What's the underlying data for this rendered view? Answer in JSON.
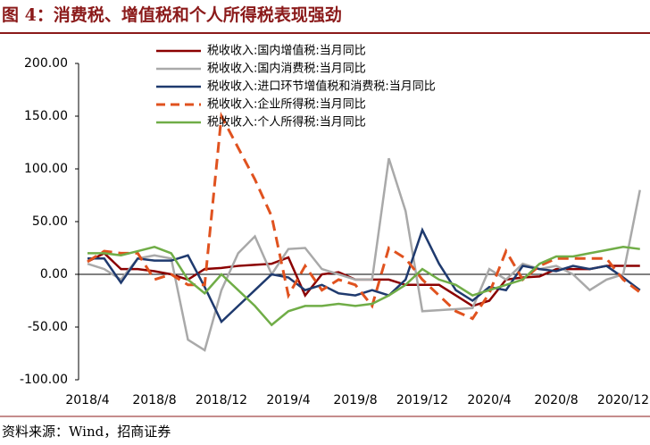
{
  "chart_data": {
    "type": "line",
    "title": "图 4：消费税、增值税和个人所得税表现强劲",
    "source": "资料来源：Wind，招商证券",
    "categories": [
      "2018/4",
      null,
      null,
      null,
      "2018/8",
      null,
      null,
      null,
      "2018/12",
      null,
      null,
      null,
      "2019/4",
      null,
      null,
      null,
      "2019/8",
      null,
      null,
      null,
      "2019/12",
      null,
      null,
      null,
      "2020/4",
      null,
      null,
      null,
      "2020/8",
      null,
      null,
      null,
      "2020/12",
      null
    ],
    "ylim": [
      -100,
      200
    ],
    "yticks": [
      {
        "value": -100,
        "label": "-100.00"
      },
      {
        "value": -50,
        "label": "-50.00"
      },
      {
        "value": 0,
        "label": "0.00"
      },
      {
        "value": 50,
        "label": "50.00"
      },
      {
        "value": 100,
        "label": "100.00"
      },
      {
        "value": 150,
        "label": "150.00"
      },
      {
        "value": 200,
        "label": "200.00"
      }
    ],
    "series": [
      {
        "name": "税收收入:国内增值税:当月同比",
        "color": "#8b0000",
        "dash": false,
        "values": [
          12,
          20,
          5,
          5,
          3,
          0,
          -5,
          5,
          6,
          8,
          9,
          10,
          16,
          -20,
          0,
          2,
          -5,
          -5,
          -5,
          -10,
          -10,
          -10,
          -20,
          -30,
          -25,
          -5,
          -3,
          -2,
          5,
          5,
          5,
          8,
          8,
          8
        ]
      },
      {
        "name": "税收收入:国内消费税:当月同比",
        "color": "#a9a9a9",
        "dash": false,
        "values": [
          10,
          5,
          -5,
          15,
          18,
          15,
          -62,
          -72,
          -15,
          20,
          36,
          0,
          24,
          25,
          5,
          0,
          -5,
          -5,
          110,
          60,
          -35,
          -34,
          -33,
          -32,
          5,
          -5,
          10,
          5,
          8,
          0,
          -15,
          -5,
          0,
          80
        ]
      },
      {
        "name": "税收收入:进口环节增值税和消费税:当月同比",
        "color": "#1f3a6e",
        "dash": false,
        "values": [
          15,
          15,
          -8,
          15,
          13,
          13,
          18,
          -12,
          -45,
          -30,
          -15,
          0,
          -3,
          -15,
          -10,
          -18,
          -20,
          -15,
          -20,
          -5,
          42,
          10,
          -15,
          -25,
          -12,
          -15,
          8,
          5,
          3,
          8,
          5,
          8,
          -3,
          -15
        ]
      },
      {
        "name": "税收收入:企业所得税:当月同比",
        "color": "#e0521f",
        "dash": true,
        "values": [
          12,
          22,
          20,
          20,
          -5,
          0,
          -10,
          -10,
          150,
          120,
          90,
          55,
          -20,
          8,
          -15,
          -5,
          -10,
          -30,
          25,
          15,
          -5,
          -20,
          -35,
          -42,
          -18,
          22,
          -5,
          8,
          15,
          15,
          15,
          15,
          -5,
          -17
        ]
      },
      {
        "name": "税收收入:个人所得税:当月同比",
        "color": "#70ad47",
        "dash": false,
        "values": [
          20,
          20,
          18,
          22,
          26,
          20,
          -5,
          -18,
          0,
          -15,
          -30,
          -48,
          -35,
          -30,
          -30,
          -28,
          -30,
          -28,
          -20,
          -10,
          5,
          -5,
          -10,
          -20,
          -15,
          -10,
          -5,
          10,
          17,
          17,
          20,
          23,
          26,
          24
        ]
      }
    ]
  }
}
